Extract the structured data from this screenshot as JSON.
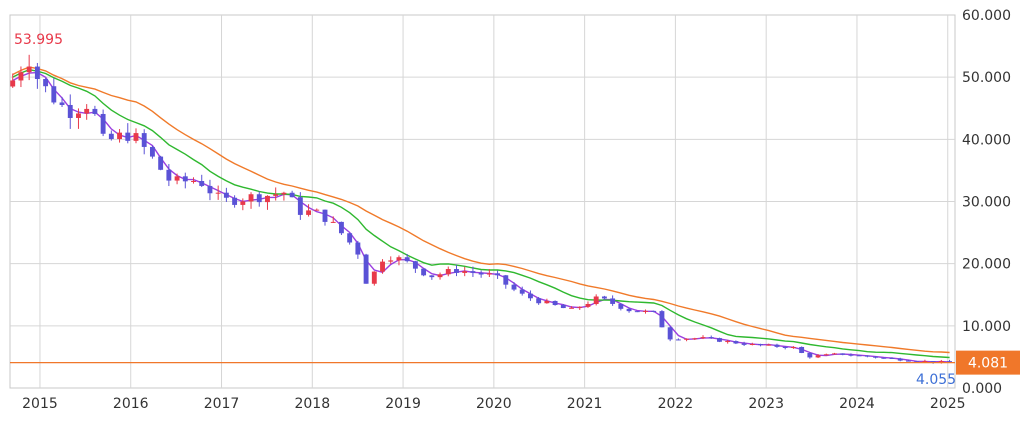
{
  "chart_data": {
    "type": "candlestick",
    "ylim": [
      0,
      60
    ],
    "y_ticks": [
      "0.000",
      "10.000",
      "20.000",
      "30.000",
      "40.000",
      "50.000",
      "60.000"
    ],
    "x_ticks": [
      "2015",
      "2016",
      "2017",
      "2018",
      "2019",
      "2020",
      "2021",
      "2022",
      "2023",
      "2024",
      "2025"
    ],
    "grid": true,
    "max_label": "53.995",
    "min_label": "4.055",
    "last_price_label": "4.081",
    "last_price": 4.081,
    "colors": {
      "up": "#e8394a",
      "down": "#5a52d6",
      "ma_fast": "#9b3fe0",
      "ma_mid": "#2fb82f",
      "ma_slow": "#f07a2a",
      "last_price_line": "#f0772a",
      "max_label": "#e8394a",
      "min_label": "#3c6fd6",
      "last_price_box": "#f0772a"
    },
    "candles_anchor": [
      {
        "x": 2014.7,
        "close": 49.5
      },
      {
        "x": 2014.87,
        "close": 53.5
      },
      {
        "x": 2015.0,
        "close": 49.0
      },
      {
        "x": 2015.3,
        "close": 44.5
      },
      {
        "x": 2015.55,
        "close": 46.0
      },
      {
        "x": 2015.7,
        "close": 39.5
      },
      {
        "x": 2016.0,
        "close": 41.0
      },
      {
        "x": 2016.15,
        "close": 38.5
      },
      {
        "x": 2016.45,
        "close": 33.0
      },
      {
        "x": 2016.75,
        "close": 33.5
      },
      {
        "x": 2017.0,
        "close": 30.0
      },
      {
        "x": 2017.2,
        "close": 30.5
      },
      {
        "x": 2017.5,
        "close": 31.0
      },
      {
        "x": 2017.7,
        "close": 31.5
      },
      {
        "x": 2017.85,
        "close": 28.5
      },
      {
        "x": 2018.1,
        "close": 28.0
      },
      {
        "x": 2018.35,
        "close": 24.5
      },
      {
        "x": 2018.55,
        "close": 21.0
      },
      {
        "x": 2018.6,
        "close": 16.5
      },
      {
        "x": 2018.8,
        "close": 21.5
      },
      {
        "x": 2019.0,
        "close": 20.5
      },
      {
        "x": 2019.3,
        "close": 18.0
      },
      {
        "x": 2019.6,
        "close": 19.0
      },
      {
        "x": 2020.0,
        "close": 18.0
      },
      {
        "x": 2020.3,
        "close": 15.0
      },
      {
        "x": 2020.6,
        "close": 13.5
      },
      {
        "x": 2020.85,
        "close": 12.5
      },
      {
        "x": 2021.0,
        "close": 13.5
      },
      {
        "x": 2021.15,
        "close": 14.5
      },
      {
        "x": 2021.5,
        "close": 12.5
      },
      {
        "x": 2021.8,
        "close": 12.0
      },
      {
        "x": 2021.9,
        "close": 8.0
      },
      {
        "x": 2022.3,
        "close": 8.0
      },
      {
        "x": 2022.8,
        "close": 7.0
      },
      {
        "x": 2023.3,
        "close": 6.5
      },
      {
        "x": 2023.45,
        "close": 5.0
      },
      {
        "x": 2023.8,
        "close": 5.5
      },
      {
        "x": 2024.3,
        "close": 4.8
      },
      {
        "x": 2024.7,
        "close": 4.3
      },
      {
        "x": 2025.0,
        "close": 4.1
      }
    ]
  }
}
